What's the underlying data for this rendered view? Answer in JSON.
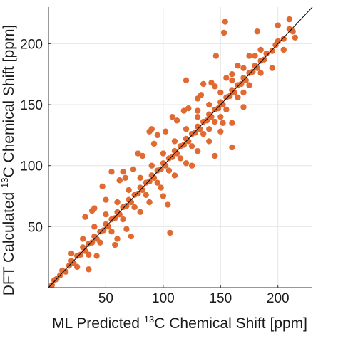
{
  "chart_data": {
    "type": "scatter",
    "title": "",
    "xlabel": {
      "before": "ML Predicted ",
      "sup": "13",
      "after": "C Chemical Shift [ppm]"
    },
    "ylabel": {
      "before": "DFT Calculated ",
      "sup": "13",
      "after": "C Chemical Shift [ppm]"
    },
    "xlim": [
      0,
      230
    ],
    "ylim": [
      0,
      230
    ],
    "xticks": [
      50,
      100,
      150,
      200
    ],
    "yticks": [
      50,
      100,
      150,
      200
    ],
    "xtick_labels": [
      "50",
      "100",
      "150",
      "200"
    ],
    "ytick_labels": [
      "50",
      "100",
      "150",
      "200"
    ],
    "grid": true,
    "colors": {
      "points": "#e06a31",
      "reference_line": "#000000",
      "grid": "#e6e6e6",
      "axes": "#333333"
    },
    "reference_line": {
      "x": [
        0,
        230
      ],
      "y": [
        0,
        230
      ]
    },
    "series": [
      {
        "points": [
          [
            3,
            2
          ],
          [
            5,
            6
          ],
          [
            7,
            7
          ],
          [
            10,
            10
          ],
          [
            12,
            14
          ],
          [
            15,
            13
          ],
          [
            18,
            18
          ],
          [
            20,
            22
          ],
          [
            22,
            20
          ],
          [
            25,
            26
          ],
          [
            28,
            27
          ],
          [
            30,
            33
          ],
          [
            32,
            30
          ],
          [
            35,
            36
          ],
          [
            38,
            37
          ],
          [
            40,
            42
          ],
          [
            42,
            40
          ],
          [
            45,
            46
          ],
          [
            48,
            47
          ],
          [
            50,
            52
          ],
          [
            52,
            50
          ],
          [
            55,
            56
          ],
          [
            58,
            57
          ],
          [
            60,
            62
          ],
          [
            62,
            60
          ],
          [
            65,
            66
          ],
          [
            68,
            67
          ],
          [
            70,
            72
          ],
          [
            72,
            70
          ],
          [
            75,
            76
          ],
          [
            78,
            77
          ],
          [
            80,
            82
          ],
          [
            82,
            80
          ],
          [
            85,
            86
          ],
          [
            88,
            87
          ],
          [
            90,
            92
          ],
          [
            92,
            90
          ],
          [
            95,
            96
          ],
          [
            98,
            97
          ],
          [
            100,
            102
          ],
          [
            102,
            100
          ],
          [
            105,
            106
          ],
          [
            108,
            107
          ],
          [
            110,
            112
          ],
          [
            112,
            110
          ],
          [
            115,
            116
          ],
          [
            118,
            117
          ],
          [
            120,
            122
          ],
          [
            122,
            120
          ],
          [
            125,
            126
          ],
          [
            128,
            127
          ],
          [
            130,
            132
          ],
          [
            132,
            130
          ],
          [
            135,
            136
          ],
          [
            138,
            137
          ],
          [
            140,
            142
          ],
          [
            142,
            140
          ],
          [
            145,
            146
          ],
          [
            148,
            147
          ],
          [
            150,
            152
          ],
          [
            152,
            150
          ],
          [
            155,
            156
          ],
          [
            158,
            157
          ],
          [
            160,
            162
          ],
          [
            162,
            160
          ],
          [
            165,
            166
          ],
          [
            168,
            167
          ],
          [
            170,
            172
          ],
          [
            172,
            170
          ],
          [
            175,
            176
          ],
          [
            178,
            177
          ],
          [
            180,
            182
          ],
          [
            182,
            180
          ],
          [
            185,
            186
          ],
          [
            188,
            187
          ],
          [
            190,
            192
          ],
          [
            195,
            194
          ],
          [
            198,
            199
          ],
          [
            200,
            202
          ],
          [
            205,
            204
          ],
          [
            210,
            212
          ],
          [
            213,
            210
          ],
          [
            20,
            28
          ],
          [
            25,
            17
          ],
          [
            30,
            40
          ],
          [
            35,
            27
          ],
          [
            40,
            50
          ],
          [
            45,
            37
          ],
          [
            50,
            60
          ],
          [
            55,
            46
          ],
          [
            60,
            70
          ],
          [
            65,
            56
          ],
          [
            70,
            80
          ],
          [
            75,
            66
          ],
          [
            80,
            90
          ],
          [
            85,
            76
          ],
          [
            90,
            100
          ],
          [
            95,
            86
          ],
          [
            100,
            110
          ],
          [
            105,
            96
          ],
          [
            110,
            120
          ],
          [
            115,
            106
          ],
          [
            120,
            130
          ],
          [
            125,
            116
          ],
          [
            130,
            140
          ],
          [
            135,
            126
          ],
          [
            140,
            150
          ],
          [
            145,
            136
          ],
          [
            150,
            160
          ],
          [
            155,
            146
          ],
          [
            160,
            170
          ],
          [
            165,
            156
          ],
          [
            170,
            180
          ],
          [
            175,
            166
          ],
          [
            180,
            190
          ],
          [
            185,
            176
          ],
          [
            32,
            58
          ],
          [
            35,
            15
          ],
          [
            38,
            63
          ],
          [
            42,
            26
          ],
          [
            50,
            72
          ],
          [
            58,
            35
          ],
          [
            62,
            88
          ],
          [
            68,
            48
          ],
          [
            74,
            97
          ],
          [
            80,
            62
          ],
          [
            82,
            108
          ],
          [
            88,
            70
          ],
          [
            92,
            118
          ],
          [
            98,
            82
          ],
          [
            102,
            128
          ],
          [
            110,
            92
          ],
          [
            112,
            137
          ],
          [
            120,
            102
          ],
          [
            122,
            147
          ],
          [
            130,
            112
          ],
          [
            133,
            158
          ],
          [
            140,
            120
          ],
          [
            145,
            165
          ],
          [
            150,
            128
          ],
          [
            155,
            172
          ],
          [
            160,
            135
          ],
          [
            165,
            182
          ],
          [
            170,
            148
          ],
          [
            120,
            170
          ],
          [
            135,
            167
          ],
          [
            145,
            108
          ],
          [
            90,
            130
          ],
          [
            104,
            68
          ],
          [
            106,
            45
          ],
          [
            55,
            95
          ],
          [
            72,
            42
          ],
          [
            47,
            83
          ],
          [
            160,
            115
          ],
          [
            130,
            155
          ],
          [
            118,
            145
          ],
          [
            152,
            135
          ],
          [
            95,
            125
          ],
          [
            67,
            90
          ],
          [
            60,
            40
          ],
          [
            142,
            168
          ],
          [
            125,
            100
          ],
          [
            108,
            140
          ],
          [
            78,
            110
          ],
          [
            154,
            218
          ],
          [
            153,
            209
          ],
          [
            146,
            190
          ],
          [
            88,
            128
          ],
          [
            100,
            75
          ],
          [
            65,
            95
          ],
          [
            40,
            65
          ],
          [
            175,
            190
          ],
          [
            182,
            210
          ],
          [
            200,
            215
          ],
          [
            210,
            220
          ],
          [
            215,
            205
          ],
          [
            205,
            195
          ],
          [
            195,
            180
          ],
          [
            185,
            195
          ],
          [
            170,
            160
          ],
          [
            160,
            175
          ],
          [
            150,
            140
          ],
          [
            140,
            130
          ],
          [
            130,
            145
          ]
        ]
      }
    ]
  }
}
